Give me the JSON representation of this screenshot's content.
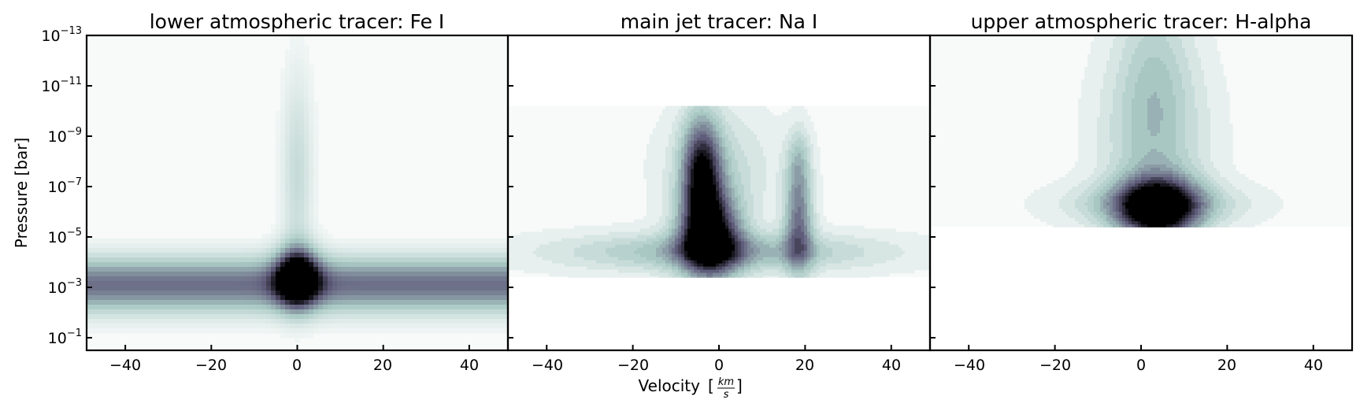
{
  "chart_data": {
    "type": "heatmap",
    "panels": [
      {
        "title": "lower atmospheric tracer: Fe I",
        "style": "pixelated",
        "log_pressure_extent": [
          -13,
          -0.6
        ],
        "blobs": [
          {
            "v": 0,
            "logp": -3.4,
            "sv": 3.5,
            "sp": 0.8,
            "a": 1.0
          },
          {
            "v": 0,
            "logp": -7.5,
            "sv": 2.5,
            "sp": 2.8,
            "a": 0.22
          },
          {
            "v": 0,
            "logp": -3.1,
            "sv": 999,
            "sp": 0.75,
            "a": 0.65
          }
        ]
      },
      {
        "title": "main jet tracer: Na I",
        "style": "contour",
        "log_pressure_extent": [
          -10.2,
          -3.4
        ],
        "blobs": [
          {
            "v": -2,
            "logp": -5.0,
            "sv": 5.0,
            "sp": 1.2,
            "a": 1.0
          },
          {
            "v": -4,
            "logp": -7.5,
            "sv": 3.2,
            "sp": 1.6,
            "a": 0.85
          },
          {
            "v": 18.5,
            "logp": -5.5,
            "sv": 2.4,
            "sp": 1.4,
            "a": 0.6
          },
          {
            "v": 18.5,
            "logp": -8.0,
            "sv": 2.0,
            "sp": 1.0,
            "a": 0.3
          },
          {
            "v": 0,
            "logp": -4.4,
            "sv": 26,
            "sp": 0.55,
            "a": 0.42
          },
          {
            "v": 0,
            "logp": -7.8,
            "sv": 9,
            "sp": 1.6,
            "a": 0.22
          }
        ]
      },
      {
        "title": "upper atmospheric tracer: H-alpha",
        "style": "contour",
        "log_pressure_extent": [
          -13,
          -5.4
        ],
        "blobs": [
          {
            "v": 4,
            "logp": -6.1,
            "sv": 6.5,
            "sp": 0.9,
            "a": 1.0
          },
          {
            "v": 3,
            "logp": -6.3,
            "sv": 14,
            "sp": 0.6,
            "a": 0.35
          },
          {
            "v": 3,
            "logp": -9.0,
            "sv": 8.5,
            "sp": 2.5,
            "a": 0.32
          },
          {
            "v": 3,
            "logp": -12.5,
            "sv": 6,
            "sp": 2.5,
            "a": 0.18
          }
        ]
      }
    ],
    "x_range": [
      -49,
      49
    ],
    "x_ticks": [
      "−40",
      "−20",
      "0",
      "20",
      "40"
    ],
    "x_tick_values": [
      -40,
      -20,
      0,
      20,
      40
    ],
    "y_log_range": [
      -13,
      -0.5
    ],
    "y_tick_exponents": [
      "−13",
      "−11",
      "−9",
      "−7",
      "−5",
      "−3",
      "−1"
    ],
    "y_tick_values": [
      -13,
      -11,
      -9,
      -7,
      -5,
      -3,
      -1
    ],
    "xlabel": "Velocity",
    "xlabel_unit_num": "km",
    "xlabel_unit_den": "s",
    "ylabel": "Pressure [bar]",
    "colormap": "bone_r",
    "colors": {
      "low": "#f7faf9",
      "mid": "#a9c9c4",
      "dark": "#5e5a79",
      "high": "#000000"
    }
  }
}
